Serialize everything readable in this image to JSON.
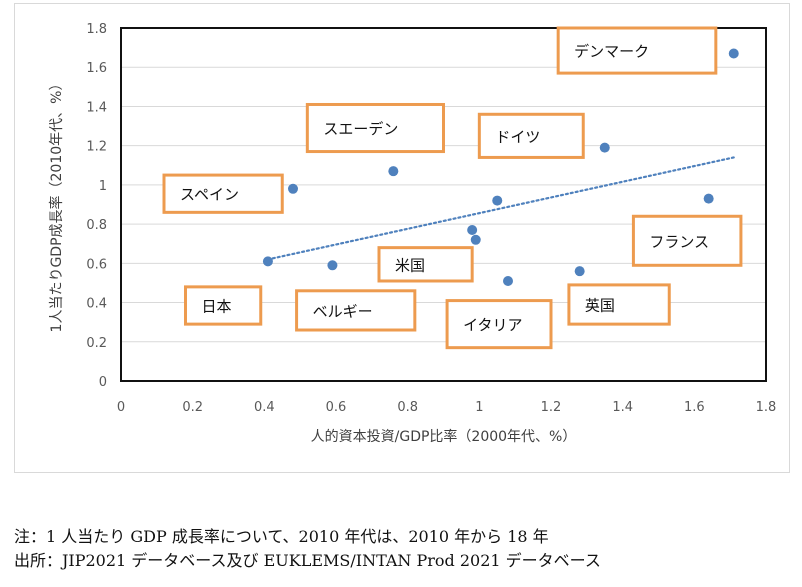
{
  "chart_data": {
    "type": "scatter",
    "title": "",
    "xlabel": "人的資本投資/GDP比率（2000年代、%）",
    "ylabel": "1人当たりGDP成長率（2010年代、%）",
    "xlim": [
      0,
      1.8
    ],
    "ylim": [
      0,
      1.8
    ],
    "xticks": [
      "0",
      "0.2",
      "0.4",
      "0.6",
      "0.8",
      "1",
      "1.2",
      "1.4",
      "1.6",
      "1.8"
    ],
    "yticks": [
      "0",
      "0.2",
      "0.4",
      "0.6",
      "0.8",
      "1",
      "1.2",
      "1.4",
      "1.6",
      "1.8"
    ],
    "grid": "horizontal",
    "point_color": "#4f81bd",
    "label_border_color": "#ed9b4f",
    "trendline": {
      "style": "dotted linear",
      "x": [
        0.41,
        1.71
      ],
      "y": [
        0.62,
        1.14
      ],
      "color": "#4f81bd"
    },
    "points": [
      {
        "name": "日本",
        "x": 0.41,
        "y": 0.61
      },
      {
        "name": "スペイン",
        "x": 0.48,
        "y": 0.98
      },
      {
        "name": "ベルギー",
        "x": 0.59,
        "y": 0.59
      },
      {
        "name": "スエーデン",
        "x": 0.76,
        "y": 1.07
      },
      {
        "name": "米国",
        "x": 0.98,
        "y": 0.77
      },
      {
        "name": "",
        "x": 0.99,
        "y": 0.72
      },
      {
        "name": "",
        "x": 1.05,
        "y": 0.92
      },
      {
        "name": "イタリア",
        "x": 1.08,
        "y": 0.51
      },
      {
        "name": "英国",
        "x": 1.28,
        "y": 0.56
      },
      {
        "name": "ドイツ",
        "x": 1.35,
        "y": 1.19
      },
      {
        "name": "フランス",
        "x": 1.64,
        "y": 0.93
      },
      {
        "name": "デンマーク",
        "x": 1.71,
        "y": 1.67
      }
    ],
    "labels": [
      {
        "text": "デンマーク",
        "x": 1.22,
        "y": 1.57,
        "x2": 1.66,
        "y2": 1.8
      },
      {
        "text": "スエーデン",
        "x": 0.52,
        "y": 1.17,
        "x2": 0.9,
        "y2": 1.41
      },
      {
        "text": "ドイツ",
        "x": 1.0,
        "y": 1.14,
        "x2": 1.29,
        "y2": 1.36
      },
      {
        "text": "スペイン",
        "x": 0.12,
        "y": 0.86,
        "x2": 0.45,
        "y2": 1.05
      },
      {
        "text": "フランス",
        "x": 1.43,
        "y": 0.59,
        "x2": 1.73,
        "y2": 0.84
      },
      {
        "text": "米国",
        "x": 0.72,
        "y": 0.51,
        "x2": 0.98,
        "y2": 0.68
      },
      {
        "text": "日本",
        "x": 0.18,
        "y": 0.29,
        "x2": 0.39,
        "y2": 0.48
      },
      {
        "text": "ベルギー",
        "x": 0.49,
        "y": 0.26,
        "x2": 0.82,
        "y2": 0.46
      },
      {
        "text": "イタリア",
        "x": 0.91,
        "y": 0.17,
        "x2": 1.2,
        "y2": 0.41
      },
      {
        "text": "英国",
        "x": 1.25,
        "y": 0.29,
        "x2": 1.53,
        "y2": 0.49
      }
    ]
  },
  "notes": {
    "note": "注：1 人当たり GDP 成長率について、2010 年代は、2010 年から 18 年",
    "source": "出所：JIP2021 データベース及び EUKLEMS/INTAN Prod 2021 データベース"
  }
}
